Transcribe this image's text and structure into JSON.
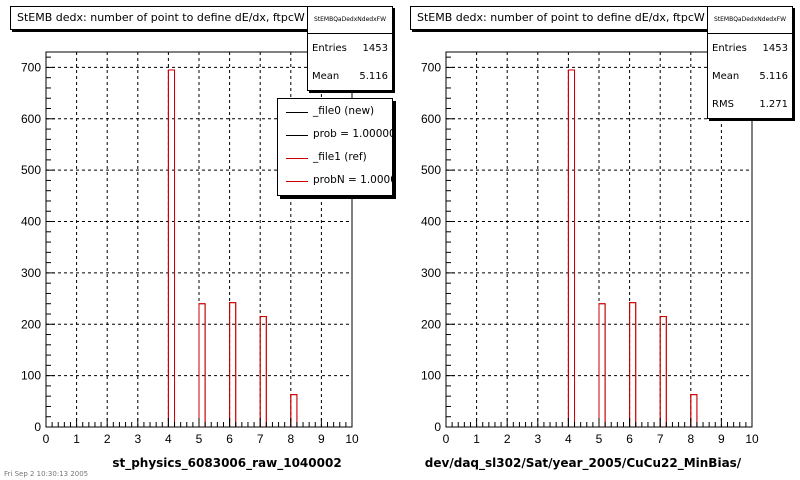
{
  "footer_text": "Fri Sep 2 10:30:13 2005",
  "panels": [
    {
      "title": "StEMB dedx: number of point to define dE/dx, ftpcW",
      "stats_name": "StEMBQaDedxNdedxFW",
      "stats": [
        {
          "label": "Entries",
          "value": "1453"
        },
        {
          "label": "Mean",
          "value": "5.116"
        }
      ],
      "xtitle": "st_physics_6083006_raw_1040002",
      "legend": [
        {
          "label": "_file0 (new)",
          "color": "#000000"
        },
        {
          "label": "prob = 1.000000",
          "color": "#000000"
        },
        {
          "label": "_file1 (ref)",
          "color": "#cc0000"
        },
        {
          "label": "probN = 1.000000",
          "color": "#cc0000"
        }
      ]
    },
    {
      "title": "StEMB dedx: number of point to define dE/dx, ftpcW",
      "stats_name": "StEMBQaDedxNdedxFW",
      "stats": [
        {
          "label": "Entries",
          "value": "1453"
        },
        {
          "label": "Mean",
          "value": "5.116"
        },
        {
          "label": "RMS",
          "value": "1.271"
        }
      ],
      "xtitle": "dev/daq_sl302/Sat/year_2005/CuCu22_MinBias/"
    }
  ],
  "chart_data": [
    {
      "type": "bar",
      "histogram": true,
      "title": "StEMB dedx: number of point to define dE/dx, ftpcW",
      "xlabel": "st_physics_6083006_raw_1040002",
      "ylabel": "",
      "xlim": [
        0,
        10
      ],
      "ylim": [
        0,
        730
      ],
      "xticks": [
        0,
        1,
        2,
        3,
        4,
        5,
        6,
        7,
        8,
        9,
        10
      ],
      "yticks": [
        0,
        100,
        200,
        300,
        400,
        500,
        600,
        700
      ],
      "grid": true,
      "series": [
        {
          "name": "_file1 (ref)",
          "color": "#cc0000",
          "bins": [
            {
              "x0": 4.0,
              "x1": 4.2,
              "value": 695
            },
            {
              "x0": 5.0,
              "x1": 5.2,
              "value": 240
            },
            {
              "x0": 6.0,
              "x1": 6.2,
              "value": 242
            },
            {
              "x0": 7.0,
              "x1": 7.2,
              "value": 215
            },
            {
              "x0": 8.0,
              "x1": 8.2,
              "value": 63
            }
          ]
        }
      ],
      "legend": "top-right"
    },
    {
      "type": "bar",
      "histogram": true,
      "title": "StEMB dedx: number of point to define dE/dx, ftpcW",
      "xlabel": "dev/daq_sl302/Sat/year_2005/CuCu22_MinBias/",
      "ylabel": "",
      "xlim": [
        0,
        10
      ],
      "ylim": [
        0,
        730
      ],
      "xticks": [
        0,
        1,
        2,
        3,
        4,
        5,
        6,
        7,
        8,
        9,
        10
      ],
      "yticks": [
        0,
        100,
        200,
        300,
        400,
        500,
        600,
        700
      ],
      "grid": true,
      "series": [
        {
          "name": "",
          "color": "#cc0000",
          "bins": [
            {
              "x0": 4.0,
              "x1": 4.2,
              "value": 695
            },
            {
              "x0": 5.0,
              "x1": 5.2,
              "value": 240
            },
            {
              "x0": 6.0,
              "x1": 6.2,
              "value": 242
            },
            {
              "x0": 7.0,
              "x1": 7.2,
              "value": 215
            },
            {
              "x0": 8.0,
              "x1": 8.2,
              "value": 63
            }
          ]
        }
      ]
    }
  ]
}
